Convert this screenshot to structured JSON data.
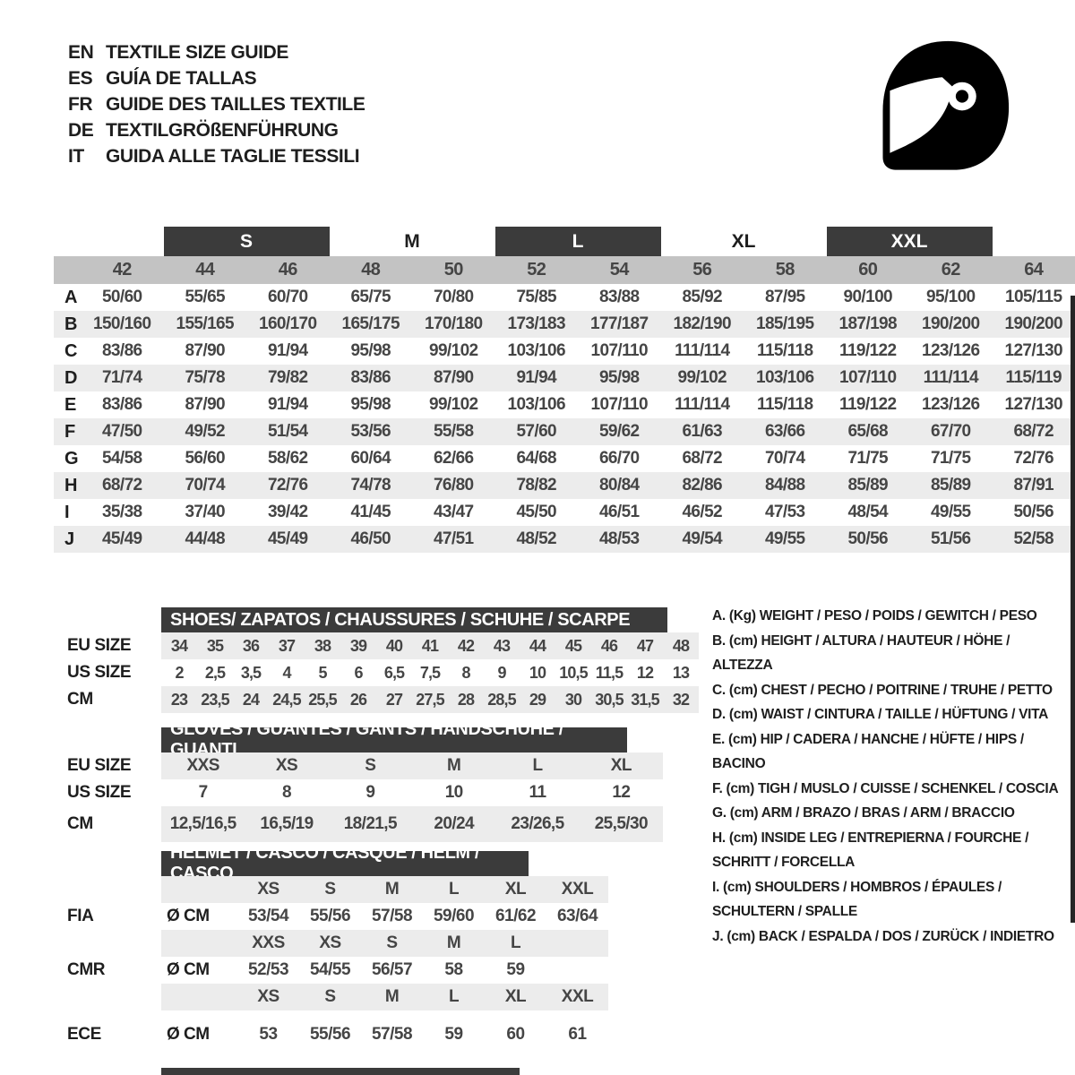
{
  "languages": [
    {
      "code": "EN",
      "title": "TEXTILE SIZE GUIDE"
    },
    {
      "code": "ES",
      "title": "GUÍA DE TALLAS"
    },
    {
      "code": "FR",
      "title": "GUIDE DES TAILLES TEXTILE"
    },
    {
      "code": "DE",
      "title": "TEXTILGRÖßENFÜHRUNG"
    },
    {
      "code": "IT",
      "title": "GUIDA ALLE TAGLIE TESSILI"
    }
  ],
  "icons": {
    "helmet": "racing-helmet-icon"
  },
  "colors": {
    "dark": "#3b3b3b",
    "band": "#c3c3c3",
    "stripe": "#ececec"
  },
  "main_table": {
    "group_headers": [
      {
        "label": "S",
        "highlight": true
      },
      {
        "label": "M",
        "highlight": false
      },
      {
        "label": "L",
        "highlight": true
      },
      {
        "label": "XL",
        "highlight": false
      },
      {
        "label": "XXL",
        "highlight": true
      }
    ],
    "sizes": [
      "42",
      "44",
      "46",
      "48",
      "50",
      "52",
      "54",
      "56",
      "58",
      "60",
      "62",
      "64"
    ],
    "rows": [
      {
        "label": "A",
        "values": [
          "50/60",
          "55/65",
          "60/70",
          "65/75",
          "70/80",
          "75/85",
          "83/88",
          "85/92",
          "87/95",
          "90/100",
          "95/100",
          "105/115"
        ]
      },
      {
        "label": "B",
        "values": [
          "150/160",
          "155/165",
          "160/170",
          "165/175",
          "170/180",
          "173/183",
          "177/187",
          "182/190",
          "185/195",
          "187/198",
          "190/200",
          "190/200"
        ]
      },
      {
        "label": "C",
        "values": [
          "83/86",
          "87/90",
          "91/94",
          "95/98",
          "99/102",
          "103/106",
          "107/110",
          "111/114",
          "115/118",
          "119/122",
          "123/126",
          "127/130"
        ]
      },
      {
        "label": "D",
        "values": [
          "71/74",
          "75/78",
          "79/82",
          "83/86",
          "87/90",
          "91/94",
          "95/98",
          "99/102",
          "103/106",
          "107/110",
          "111/114",
          "115/119"
        ]
      },
      {
        "label": "E",
        "values": [
          "83/86",
          "87/90",
          "91/94",
          "95/98",
          "99/102",
          "103/106",
          "107/110",
          "111/114",
          "115/118",
          "119/122",
          "123/126",
          "127/130"
        ]
      },
      {
        "label": "F",
        "values": [
          "47/50",
          "49/52",
          "51/54",
          "53/56",
          "55/58",
          "57/60",
          "59/62",
          "61/63",
          "63/66",
          "65/68",
          "67/70",
          "68/72"
        ]
      },
      {
        "label": "G",
        "values": [
          "54/58",
          "56/60",
          "58/62",
          "60/64",
          "62/66",
          "64/68",
          "66/70",
          "68/72",
          "70/74",
          "71/75",
          "71/75",
          "72/76"
        ]
      },
      {
        "label": "H",
        "values": [
          "68/72",
          "70/74",
          "72/76",
          "74/78",
          "76/80",
          "78/82",
          "80/84",
          "82/86",
          "84/88",
          "85/89",
          "85/89",
          "87/91"
        ]
      },
      {
        "label": "I",
        "values": [
          "35/38",
          "37/40",
          "39/42",
          "41/45",
          "43/47",
          "45/50",
          "46/51",
          "46/52",
          "47/53",
          "48/54",
          "49/55",
          "50/56"
        ]
      },
      {
        "label": "J",
        "values": [
          "45/49",
          "44/48",
          "45/49",
          "46/50",
          "47/51",
          "48/52",
          "48/53",
          "49/54",
          "49/55",
          "50/56",
          "51/56",
          "52/58"
        ]
      }
    ]
  },
  "shoes": {
    "title": "SHOES/ ZAPATOS / CHAUSSURES / SCHUHE / SCARPE",
    "rows": [
      {
        "label": "EU SIZE",
        "values": [
          "34",
          "35",
          "36",
          "37",
          "38",
          "39",
          "40",
          "41",
          "42",
          "43",
          "44",
          "45",
          "46",
          "47",
          "48"
        ]
      },
      {
        "label": "US SIZE",
        "values": [
          "2",
          "2,5",
          "3,5",
          "4",
          "5",
          "6",
          "6,5",
          "7,5",
          "8",
          "9",
          "10",
          "10,5",
          "11,5",
          "12",
          "13"
        ]
      },
      {
        "label": "CM",
        "values": [
          "23",
          "23,5",
          "24",
          "24,5",
          "25,5",
          "26",
          "27",
          "27,5",
          "28",
          "28,5",
          "29",
          "30",
          "30,5",
          "31,5",
          "32"
        ]
      }
    ]
  },
  "gloves": {
    "title": "GLOVES / GUANTES / GANTS / HANDSCHUHE / GUANTI",
    "rows": [
      {
        "label": "EU SIZE",
        "values": [
          "XXS",
          "XS",
          "S",
          "M",
          "L",
          "XL"
        ]
      },
      {
        "label": "US SIZE",
        "values": [
          "7",
          "8",
          "9",
          "10",
          "11",
          "12"
        ]
      },
      {
        "label": "CM",
        "values": [
          "12,5/16,5",
          "16,5/19",
          "18/21,5",
          "20/24",
          "23/26,5",
          "25,5/30"
        ]
      }
    ]
  },
  "helmet": {
    "title": "HELMET / CASCO / CASQUE / HELM / CASCO",
    "standards": [
      {
        "label": "FIA",
        "unit": "Ø CM",
        "sizes": [
          "XS",
          "S",
          "M",
          "L",
          "XL",
          "XXL"
        ],
        "values": [
          "53/54",
          "55/56",
          "57/58",
          "59/60",
          "61/62",
          "63/64"
        ]
      },
      {
        "label": "CMR",
        "unit": "Ø CM",
        "sizes": [
          "XXS",
          "XS",
          "S",
          "M",
          "L"
        ],
        "values": [
          "52/53",
          "54/55",
          "56/57",
          "58",
          "59"
        ]
      },
      {
        "label": "ECE",
        "unit": "Ø CM",
        "sizes": [
          "XS",
          "S",
          "M",
          "L",
          "XL",
          "XXL"
        ],
        "values": [
          "53",
          "55/56",
          "57/58",
          "59",
          "60",
          "61"
        ]
      }
    ]
  },
  "legend": {
    "items": [
      "A. (Kg) WEIGHT / PESO / POIDS / GEWITCH / PESO",
      "B. (cm) HEIGHT / ALTURA / HAUTEUR / HÖHE / ALTEZZA",
      "C. (cm) CHEST / PECHO / POITRINE / TRUHE / PETTO",
      "D. (cm) WAIST / CINTURA / TAILLE / HÜFTUNG / VITA",
      "E. (cm) HIP / CADERA / HANCHE / HÜFTE / HIPS /  BACINO",
      "F. (cm) TIGH / MUSLO / CUISSE / SCHENKEL / COSCIA",
      "G. (cm) ARM  / BRAZO / BRAS / ARM / BRACCIO",
      "H. (cm) INSIDE LEG / ENTREPIERNA / FOURCHE /\nSCHRITT / FORCELLA",
      "I.  (cm) SHOULDERS / HOMBROS / ÉPAULES /\nSCHULTERN / SPALLE",
      "J. (cm) BACK / ESPALDA / DOS / ZURÜCK / INDIETRO"
    ]
  }
}
